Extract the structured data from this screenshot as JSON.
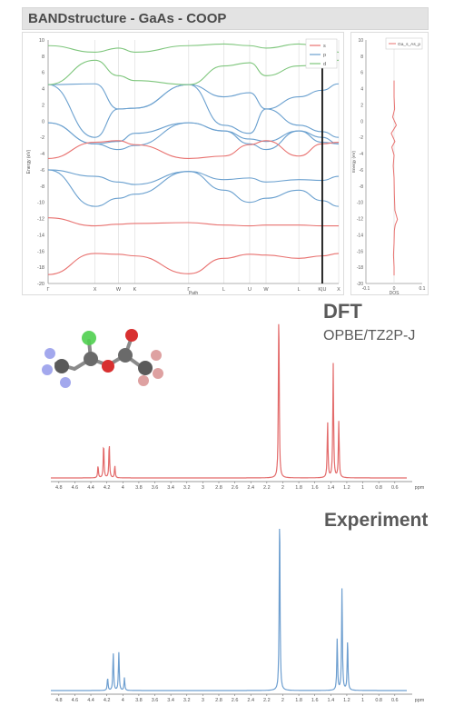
{
  "header": {
    "title": "BANDstructure - GaAs - COOP"
  },
  "colors": {
    "s": "#e8716f",
    "p": "#6aa0cf",
    "d": "#7ec67c",
    "dft": "#e36b6b",
    "exp": "#6e9fd0"
  },
  "chart_data": [
    {
      "type": "line",
      "title": "",
      "xlabel": "Path",
      "ylabel": "Energy (eV)",
      "ylim": [
        -20,
        10
      ],
      "y_ticks": [
        "10",
        "8",
        "6",
        "4",
        "2",
        "0",
        "-2",
        "-4",
        "-6",
        "-8",
        "-10",
        "-12",
        "-14",
        "-16",
        "-18",
        "-20"
      ],
      "k_labels": [
        "Γ",
        "X",
        "W",
        "K",
        "Γ",
        "L",
        "U",
        "W",
        "L",
        "K|U",
        "X"
      ],
      "k_positions": [
        0,
        1,
        1.5,
        1.85,
        3.0,
        3.75,
        4.3,
        4.65,
        5.35,
        5.85,
        6.2
      ],
      "legend": [
        "s",
        "p",
        "d"
      ],
      "legend_position": "top-right",
      "bands": [
        {
          "series": "s",
          "y": [
            -18.9,
            -16.3,
            -16.4,
            -16.6,
            -18.8,
            -16.9,
            -16.4,
            -16.5,
            -16.9,
            -16.6,
            -16.3
          ]
        },
        {
          "series": "s",
          "y": [
            -11.9,
            -12.9,
            -12.7,
            -12.6,
            -12.5,
            -12.8,
            -12.9,
            -12.8,
            -12.8,
            -12.9,
            -12.9
          ]
        },
        {
          "series": "p",
          "y": [
            -6.0,
            -10.5,
            -9.5,
            -9.0,
            -6.2,
            -8.5,
            -10.0,
            -9.5,
            -8.5,
            -9.8,
            -10.5
          ]
        },
        {
          "series": "p",
          "y": [
            -6.0,
            -6.8,
            -7.5,
            -7.8,
            -6.2,
            -7.2,
            -7.0,
            -7.5,
            -7.2,
            -7.3,
            -6.8
          ]
        },
        {
          "series": "p",
          "y": [
            -0.2,
            -2.8,
            -3.5,
            -3.0,
            -0.2,
            -1.2,
            -2.8,
            -3.5,
            -1.2,
            -2.6,
            -2.8
          ]
        },
        {
          "series": "p",
          "y": [
            -0.2,
            -2.8,
            -2.5,
            -1.5,
            -0.2,
            -1.2,
            -2.2,
            -2.5,
            -1.2,
            -2.0,
            -2.8
          ]
        },
        {
          "series": "s",
          "y": [
            -4.6,
            -2.6,
            -2.4,
            -2.9,
            -4.6,
            -4.3,
            -2.9,
            -2.4,
            -4.3,
            -2.8,
            -2.6
          ]
        },
        {
          "series": "p",
          "y": [
            4.5,
            -2.0,
            1.5,
            1.6,
            4.5,
            -0.5,
            -1.5,
            1.5,
            -0.5,
            -1.3,
            -2.0
          ]
        },
        {
          "series": "p",
          "y": [
            4.5,
            4.6,
            1.5,
            1.6,
            4.5,
            3.0,
            3.5,
            1.5,
            3.0,
            3.8,
            4.6
          ]
        },
        {
          "series": "d",
          "y": [
            4.5,
            7.5,
            5.6,
            5.0,
            4.5,
            6.8,
            7.2,
            5.6,
            6.8,
            7.0,
            7.5
          ]
        },
        {
          "series": "d",
          "y": [
            9.3,
            8.5,
            9.0,
            8.5,
            9.3,
            9.5,
            9.3,
            9.0,
            9.5,
            9.2,
            8.5
          ]
        }
      ]
    },
    {
      "type": "line",
      "title": "",
      "xlabel": "DOS",
      "ylabel": "Energy (eV)",
      "xlim": [
        -0.1,
        0.1
      ],
      "ylim": [
        -20,
        10
      ],
      "x_ticks": [
        "-0.1",
        "0",
        "0.1"
      ],
      "legend": [
        "Ga_s_As_p"
      ],
      "legend_position": "top-right",
      "series": [
        {
          "name": "Ga_s_As_p",
          "x": [
            0.0,
            0.0,
            0.002,
            -0.005,
            0.008,
            -0.01,
            0.003,
            -0.008,
            0.0,
            -0.003,
            0.0,
            0.001,
            0.003,
            0.012,
            0.004,
            0.001,
            0.0,
            -0.002,
            0.0,
            0.0
          ],
          "y": [
            5.0,
            3.0,
            1.5,
            0.5,
            -0.5,
            -1.5,
            -2.5,
            -3.2,
            -4.2,
            -5.5,
            -7.0,
            -9.0,
            -11.0,
            -12.1,
            -12.8,
            -13.5,
            -15.0,
            -16.5,
            -18.0,
            -19.0
          ]
        }
      ]
    },
    {
      "type": "line",
      "title": "DFT",
      "subtitle": "OPBE/TZ2P-J",
      "xlabel": "ppm",
      "x_ticks": [
        "4.8",
        "4.6",
        "4.4",
        "4.2",
        "4",
        "3.8",
        "3.6",
        "3.4",
        "3.2",
        "3",
        "2.8",
        "2.6",
        "2.4",
        "2.2",
        "2",
        "1.8",
        "1.6",
        "1.4",
        "1.2",
        "1",
        "0.8",
        "0.6"
      ],
      "xlim": [
        4.9,
        0.45
      ],
      "peaks": [
        {
          "ppm": 4.31,
          "height": 0.07
        },
        {
          "ppm": 4.24,
          "height": 0.2
        },
        {
          "ppm": 4.17,
          "height": 0.2
        },
        {
          "ppm": 4.1,
          "height": 0.07
        },
        {
          "ppm": 2.05,
          "height": 1.0
        },
        {
          "ppm": 1.44,
          "height": 0.33
        },
        {
          "ppm": 1.37,
          "height": 0.67
        },
        {
          "ppm": 1.3,
          "height": 0.33
        }
      ]
    },
    {
      "type": "line",
      "title": "Experiment",
      "xlabel": "ppm",
      "x_ticks": [
        "4.8",
        "4.6",
        "4.4",
        "4.2",
        "4",
        "3.8",
        "3.6",
        "3.4",
        "3.2",
        "3",
        "2.8",
        "2.6",
        "2.4",
        "2.2",
        "2",
        "1.8",
        "1.6",
        "1.4",
        "1.2",
        "1",
        "0.8",
        "0.6"
      ],
      "xlim": [
        4.9,
        0.45
      ],
      "peaks": [
        {
          "ppm": 4.19,
          "height": 0.07
        },
        {
          "ppm": 4.12,
          "height": 0.21
        },
        {
          "ppm": 4.05,
          "height": 0.21
        },
        {
          "ppm": 3.98,
          "height": 0.07
        },
        {
          "ppm": 2.04,
          "height": 1.0
        },
        {
          "ppm": 1.32,
          "height": 0.28
        },
        {
          "ppm": 1.26,
          "height": 0.57
        },
        {
          "ppm": 1.19,
          "height": 0.28
        }
      ]
    }
  ]
}
